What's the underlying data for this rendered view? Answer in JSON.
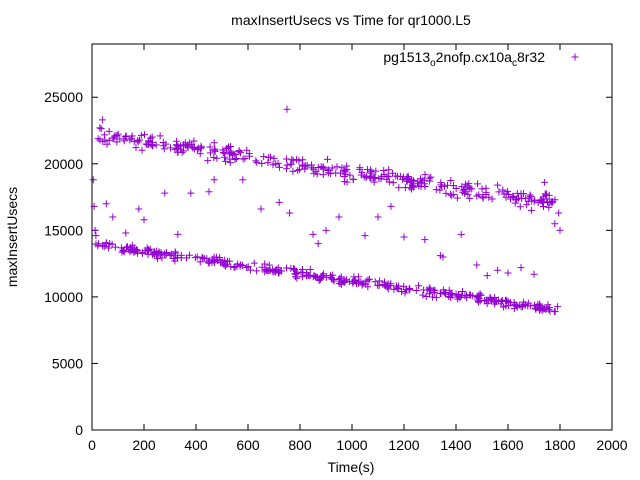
{
  "chart_data": {
    "type": "scatter",
    "title": "maxInsertUsecs vs Time for qr1000.L5",
    "xlabel": "Time(s)",
    "ylabel": "maxInsertUsecs",
    "xlim": [
      0,
      2000
    ],
    "ylim": [
      0,
      29000
    ],
    "xticks": [
      0,
      200,
      400,
      600,
      800,
      1000,
      1200,
      1400,
      1600,
      1800,
      2000
    ],
    "yticks": [
      0,
      5000,
      10000,
      15000,
      20000,
      25000
    ],
    "grid": false,
    "legend_position": "top-right",
    "marker": "plus",
    "color": "#9400d3",
    "series": [
      {
        "name": "pg1513_o2nofp.cx10a_c8r32",
        "name_parts": [
          "pg1513",
          "o",
          "2nofp.cx10a",
          "c",
          "8r32"
        ],
        "bands": [
          {
            "x_start": 20,
            "x_end": 1800,
            "y_start": 22200,
            "y_end": 17000,
            "spread": 900,
            "count": 340
          },
          {
            "x_start": 10,
            "x_end": 1800,
            "y_start": 13900,
            "y_end": 9000,
            "spread": 500,
            "count": 360
          }
        ],
        "points": [
          [
            5,
            18800
          ],
          [
            8,
            16800
          ],
          [
            12,
            15000
          ],
          [
            15,
            14600
          ],
          [
            40,
            23300
          ],
          [
            30,
            22700
          ],
          [
            55,
            17000
          ],
          [
            80,
            16000
          ],
          [
            130,
            14800
          ],
          [
            180,
            16600
          ],
          [
            200,
            15800
          ],
          [
            280,
            17800
          ],
          [
            330,
            14700
          ],
          [
            380,
            17800
          ],
          [
            450,
            17900
          ],
          [
            470,
            18800
          ],
          [
            580,
            18800
          ],
          [
            650,
            16600
          ],
          [
            720,
            17100
          ],
          [
            750,
            24100
          ],
          [
            760,
            16300
          ],
          [
            850,
            14700
          ],
          [
            870,
            14000
          ],
          [
            900,
            15000
          ],
          [
            950,
            16000
          ],
          [
            1050,
            14600
          ],
          [
            1100,
            16000
          ],
          [
            1150,
            16800
          ],
          [
            1200,
            14500
          ],
          [
            1280,
            14300
          ],
          [
            1340,
            13100
          ],
          [
            1350,
            13000
          ],
          [
            1420,
            14700
          ],
          [
            1480,
            12400
          ],
          [
            1520,
            11600
          ],
          [
            1560,
            12000
          ],
          [
            1600,
            11800
          ],
          [
            1650,
            12200
          ],
          [
            1700,
            11700
          ],
          [
            1780,
            15500
          ],
          [
            1800,
            15000
          ],
          [
            1795,
            16300
          ],
          [
            1560,
            18400
          ],
          [
            1690,
            16500
          ],
          [
            1740,
            18600
          ]
        ]
      }
    ]
  }
}
